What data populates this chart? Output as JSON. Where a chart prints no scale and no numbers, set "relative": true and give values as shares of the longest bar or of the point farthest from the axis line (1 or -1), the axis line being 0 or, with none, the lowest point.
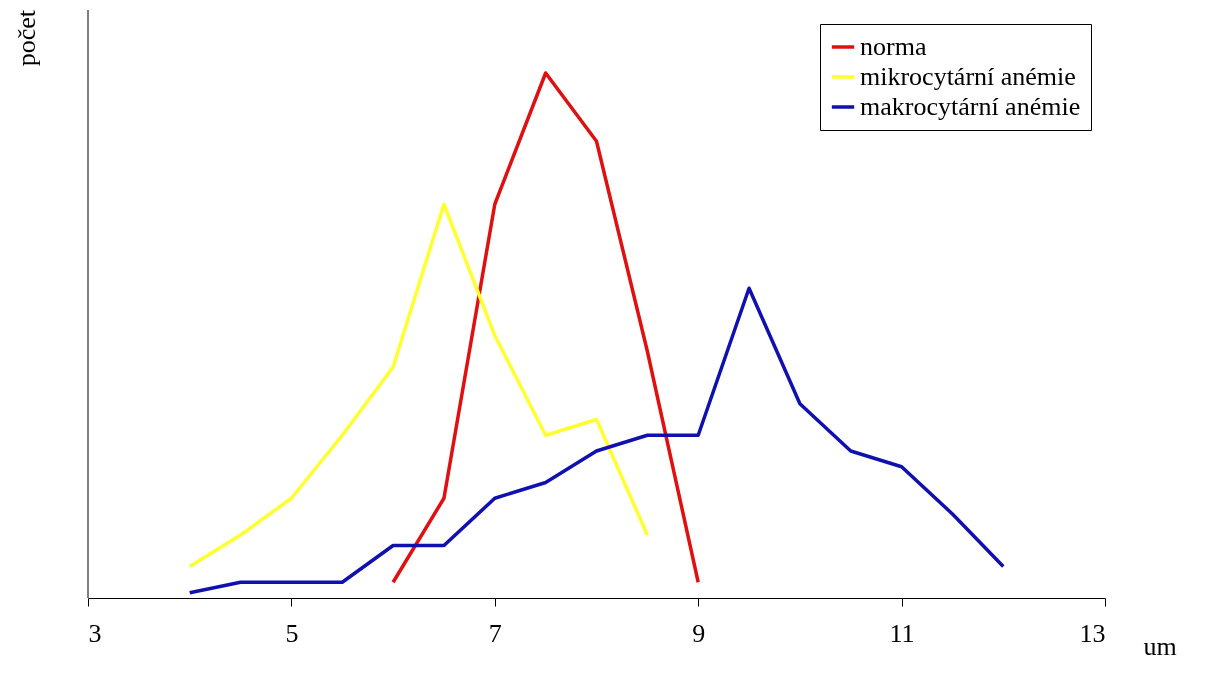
{
  "chart_data": {
    "type": "line",
    "relative": true,
    "xlabel": "um",
    "ylabel": "počet",
    "xlim": [
      3,
      13
    ],
    "xticks": [
      3,
      5,
      7,
      9,
      11,
      13
    ],
    "grid": false,
    "legend": "top right",
    "marker": "none",
    "line_style": "solid",
    "series": [
      {
        "name": "norma",
        "color": "#e01010",
        "x": [
          6,
          6.5,
          7,
          7.5,
          8,
          8.5,
          9
        ],
        "values": [
          0.03,
          0.19,
          0.75,
          1,
          0.87,
          0.47,
          0.03
        ]
      },
      {
        "name": "mikrocytární anémie",
        "color": "#ffff30",
        "x": [
          4,
          4.5,
          5,
          5.5,
          6,
          6.5,
          7,
          7.5,
          8,
          8.5
        ],
        "values": [
          0.06,
          0.12,
          0.19,
          0.31,
          0.44,
          0.75,
          0.5,
          0.31,
          0.34,
          0.12
        ]
      },
      {
        "name": "makrocytární anémie",
        "color": "#1010b0",
        "x": [
          4,
          4.5,
          5,
          5.5,
          6,
          6.5,
          7,
          7.5,
          8,
          8.5,
          9,
          9.5,
          10,
          10.5,
          11,
          11.5,
          12
        ],
        "values": [
          0.01,
          0.03,
          0.03,
          0.03,
          0.1,
          0.1,
          0.19,
          0.22,
          0.28,
          0.31,
          0.31,
          0.59,
          0.37,
          0.28,
          0.25,
          0.16,
          0.06
        ]
      }
    ]
  }
}
